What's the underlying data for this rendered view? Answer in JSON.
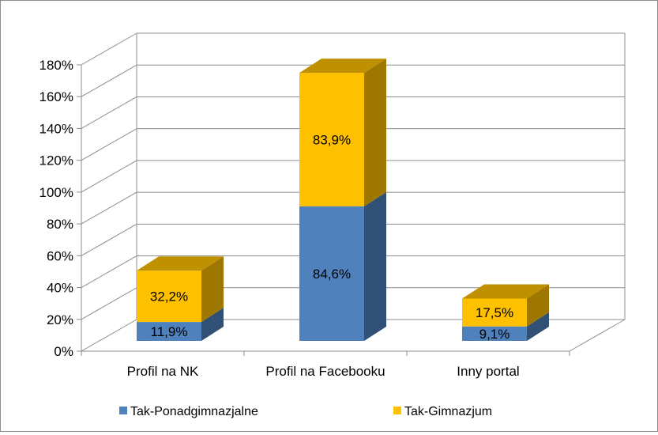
{
  "chart_data": {
    "type": "bar",
    "stacked": true,
    "three_d": true,
    "categories": [
      "Profil na NK",
      "Profil na Facebooku",
      "Inny portal"
    ],
    "series": [
      {
        "name": "Tak-Ponadgimnazjalne",
        "values": [
          11.9,
          84.6,
          9.1
        ],
        "labels": [
          "11,9%",
          "84,6%",
          "9,1%"
        ],
        "color": "#4f81bd"
      },
      {
        "name": "Tak-Gimnazjum",
        "values": [
          32.2,
          83.9,
          17.5
        ],
        "labels": [
          "32,2%",
          "83,9%",
          "17,5%"
        ],
        "color": "#ffc000"
      }
    ],
    "ylim": [
      0,
      180
    ],
    "yticks": [
      "0%",
      "20%",
      "40%",
      "60%",
      "80%",
      "100%",
      "120%",
      "140%",
      "160%",
      "180%"
    ],
    "grid": true,
    "legend": "bottom"
  }
}
